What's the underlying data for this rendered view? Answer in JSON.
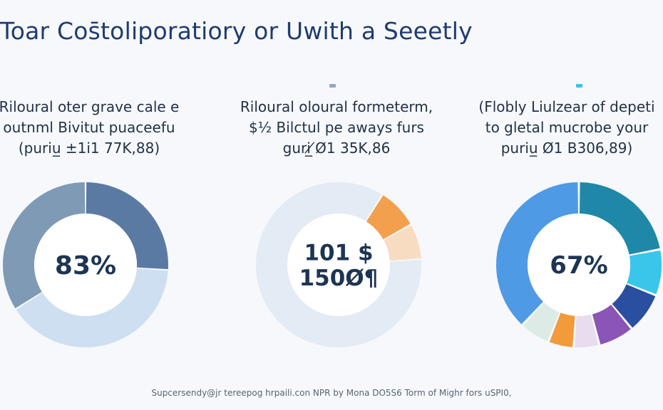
{
  "title": "Toar Cos̄toliporatiory or Uwith a Seeetly",
  "footnote": "Supcersendy@jr tereepog hrpaili.con NPR by Mona DO5S6 Torm of Mighr fors uSPI0,",
  "chart_data": [
    {
      "type": "pie",
      "caption": [
        "Riloural oter grave cale e",
        "outnml Bivitut puaceefu",
        "(puriu̲ ±1i1 77K,88)"
      ],
      "center_label": [
        "83%"
      ],
      "marker_color": "",
      "slices": [
        {
          "value": 26,
          "color": "#5b7aa3"
        },
        {
          "value": 40,
          "color": "#cddff0"
        },
        {
          "value": 34,
          "color": "#7f9ab5"
        }
      ]
    },
    {
      "type": "pie",
      "caption": [
        "Riloural oloural formeterm,",
        "$½ Bilctul pe aways furs",
        "guri̲ ̸Ø1 35K,86"
      ],
      "center_label": [
        "101 $",
        "150Ø¶"
      ],
      "marker_color": "#8ea7c4",
      "slices": [
        {
          "value": 8,
          "color": "#f3a04e"
        },
        {
          "value": 7,
          "color": "#f8dcc2"
        },
        {
          "value": 85,
          "color": "#e3ebf4"
        }
      ]
    },
    {
      "type": "pie",
      "caption": [
        "(Flobly Liulzear of depeti",
        "to gletal mucrobe your",
        "puriu̲ Ø1 B306,89)"
      ],
      "center_label": [
        "67%"
      ],
      "marker_color": "#2fc6e8",
      "slices": [
        {
          "value": 22,
          "color": "#1f88a8"
        },
        {
          "value": 9,
          "color": "#39c6ea"
        },
        {
          "value": 8,
          "color": "#2a4fa1"
        },
        {
          "value": 7,
          "color": "#8a55b6"
        },
        {
          "value": 5,
          "color": "#e8dcef"
        },
        {
          "value": 5,
          "color": "#f29b3b"
        },
        {
          "value": 6,
          "color": "#dcebe6"
        },
        {
          "value": 38,
          "color": "#4f9ae5"
        }
      ]
    }
  ]
}
